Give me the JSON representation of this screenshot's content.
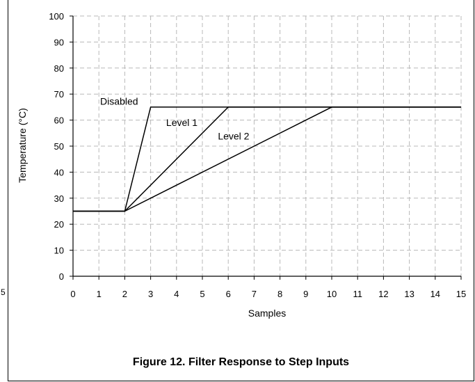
{
  "chart_data": {
    "type": "line",
    "xlabel": "Samples",
    "ylabel": "Temperature (°C)",
    "xlim": [
      0,
      15
    ],
    "ylim": [
      0,
      100
    ],
    "x_ticks": [
      0,
      1,
      2,
      3,
      4,
      5,
      6,
      7,
      8,
      9,
      10,
      11,
      12,
      13,
      14,
      15
    ],
    "y_ticks": [
      0,
      10,
      20,
      30,
      40,
      50,
      60,
      70,
      80,
      90,
      100
    ],
    "grid": true,
    "grid_style": "dashed",
    "series": [
      {
        "name": "Disabled",
        "points": [
          [
            0,
            25
          ],
          [
            2,
            25
          ],
          [
            3,
            65
          ],
          [
            15,
            65
          ]
        ]
      },
      {
        "name": "Level 1",
        "points": [
          [
            0,
            25
          ],
          [
            2,
            25
          ],
          [
            6,
            65
          ],
          [
            15,
            65
          ]
        ]
      },
      {
        "name": "Level 2",
        "points": [
          [
            0,
            25
          ],
          [
            2,
            25
          ],
          [
            10,
            65
          ],
          [
            15,
            65
          ]
        ]
      }
    ],
    "annotations": [
      {
        "text": "Disabled",
        "x": 1.05,
        "y": 65.9
      },
      {
        "text": "Level 1",
        "x": 3.6,
        "y": 57.8
      },
      {
        "text": "Level 2",
        "x": 5.6,
        "y": 52.5
      }
    ]
  },
  "caption": "Figure 12. Filter Response to Step Inputs",
  "stray_text": "5"
}
